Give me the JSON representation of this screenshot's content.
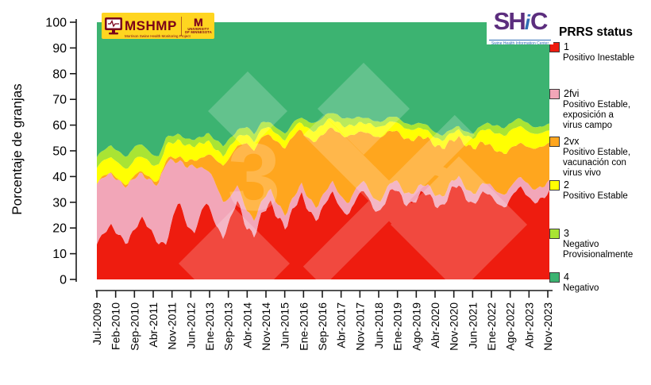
{
  "colors": {
    "umn_maroon": "#7A0019",
    "umn_gold": "#FFD520",
    "shic_purple": "#5C2E7E",
    "shic_blue": "#2F6DB5",
    "axis": "#1a1a1a"
  },
  "logos": {
    "mshmp": {
      "name": "MSHMP",
      "subtitle": "Morrison Swine Health Monitoring Project"
    },
    "umn": {
      "m": "M",
      "line1": "University",
      "line2": "of Minnesota"
    },
    "shic": {
      "sh": "SH",
      "i": "i",
      "c": "C",
      "subtitle": "Swine Health Information Center"
    }
  },
  "watermark": {
    "glyph": "3"
  },
  "legend": {
    "title": "PRRS status",
    "items": [
      {
        "code": "1",
        "color": "#EE1C0F",
        "desc": [
          "Positivo Inestable"
        ]
      },
      {
        "code": "2fvi",
        "color": "#F2A6B8",
        "desc": [
          "Positivo Estable,",
          "exposición a",
          "virus campo"
        ]
      },
      {
        "code": "2vx",
        "color": "#FFA61E",
        "desc": [
          "Positivo Estable,",
          "vacunación con",
          "virus vivo"
        ]
      },
      {
        "code": "2",
        "color": "#FFFF02",
        "desc": [
          "Positivo Estable"
        ]
      },
      {
        "code": "3",
        "color": "#A9E434",
        "desc": [
          "Negativo",
          "Provisionalmente"
        ]
      },
      {
        "code": "4",
        "color": "#3CB371",
        "desc": [
          "Negativo"
        ]
      }
    ]
  },
  "chart_data": {
    "type": "area",
    "stacked": true,
    "title": "",
    "xlabel": "",
    "ylabel": "Porcentaje de granjas",
    "ylim": [
      0,
      100
    ],
    "grid": false,
    "legend_position": "right",
    "yticks": [
      0,
      10,
      20,
      30,
      40,
      50,
      60,
      70,
      80,
      90,
      100
    ],
    "xtick_labels": [
      "Jul-2009",
      "Feb-2010",
      "Sep-2010",
      "Abr-2011",
      "Nov-2011",
      "Jun-2012",
      "Ene-2013",
      "Sep-2013",
      "Abr-2014",
      "Nov-2014",
      "Jun-2015",
      "Ene-2016",
      "Sep-2016",
      "Abr-2017",
      "Nov-2017",
      "Jun-2018",
      "Ene-2019",
      "Ago-2019",
      "Abr-2020",
      "Nov-2020",
      "Jun-2021",
      "Ene-2022",
      "Ago-2022",
      "Abr-2023",
      "Nov-2023"
    ],
    "x": [
      2009.54,
      2009.75,
      2010.0,
      2010.25,
      2010.5,
      2010.75,
      2011.0,
      2011.25,
      2011.5,
      2011.75,
      2012.0,
      2012.15,
      2012.4,
      2012.65,
      2012.9,
      2013.05,
      2013.3,
      2013.55,
      2013.8,
      2014.0,
      2014.3,
      2014.55,
      2014.8,
      2015.05,
      2015.3,
      2015.55,
      2015.8,
      2016.05,
      2016.3,
      2016.55,
      2016.8,
      2017.05,
      2017.3,
      2017.55,
      2017.8,
      2018.05,
      2018.3,
      2018.55,
      2018.8,
      2019.05,
      2019.3,
      2019.55,
      2019.8,
      2020.05,
      2020.3,
      2020.55,
      2020.8,
      2021.05,
      2021.3,
      2021.55,
      2021.8,
      2022.05,
      2022.3,
      2022.55,
      2022.8,
      2023.05,
      2023.3,
      2023.55,
      2023.93
    ],
    "series": [
      {
        "name": "1 Positivo Inestable",
        "color": "#EE1C0F",
        "values": [
          14,
          18,
          21,
          17,
          14,
          20,
          24,
          19,
          14,
          14,
          26,
          31,
          21,
          18,
          28,
          30,
          22,
          16,
          24,
          31,
          20,
          17,
          26,
          30,
          24,
          20,
          28,
          33,
          26,
          23,
          30,
          34,
          27,
          25,
          32,
          35,
          28,
          26,
          33,
          36,
          30,
          29,
          33,
          34,
          29,
          28,
          35,
          37,
          31,
          29,
          34,
          33,
          29,
          28,
          34,
          36,
          31,
          30,
          34
        ]
      },
      {
        "name": "2fvi Positivo Estable, exposición a virus campo",
        "color": "#F2A6B8",
        "values": [
          23,
          22,
          20,
          21,
          22,
          20,
          17,
          19,
          23,
          32,
          20,
          15,
          23,
          26,
          15,
          13,
          16,
          14,
          8,
          6,
          7,
          6,
          5,
          5,
          5,
          5,
          4.5,
          4,
          5,
          5,
          4.5,
          4,
          5,
          4.5,
          4,
          3.5,
          4,
          4,
          3.5,
          3,
          4,
          4,
          3.5,
          3,
          4,
          4,
          3,
          3,
          4,
          4,
          3.5,
          4,
          4.5,
          5,
          4,
          4,
          5,
          5,
          4
        ]
      },
      {
        "name": "2vx Positivo Estable, vacunación con virus vivo",
        "color": "#FFA61E",
        "values": [
          0.5,
          0.5,
          0.5,
          0.5,
          0.5,
          1,
          1,
          1,
          1,
          1,
          1.5,
          1.5,
          2,
          2.5,
          4,
          6,
          9,
          14,
          16,
          15,
          26,
          27,
          25,
          21,
          24,
          26,
          24,
          21,
          23,
          26,
          23,
          21,
          24,
          26,
          21,
          19,
          24,
          25,
          21,
          19,
          21,
          21,
          19,
          18,
          19,
          19,
          16,
          15,
          17,
          18,
          16,
          15,
          16,
          16,
          14,
          13,
          15,
          16,
          15
        ]
      },
      {
        "name": "2 Positivo Estable",
        "color": "#FFFF02",
        "values": [
          6,
          6,
          6,
          6.5,
          6,
          6,
          6,
          6,
          6,
          5.5,
          6,
          6.5,
          6,
          5.5,
          6,
          5,
          4,
          4,
          4,
          3.5,
          3.5,
          3.5,
          3,
          3,
          3,
          3,
          3,
          3,
          4,
          4,
          4,
          3.5,
          4,
          4,
          3.5,
          3.5,
          4,
          4,
          3.5,
          3.5,
          4,
          4,
          3.5,
          3,
          3,
          3,
          3,
          3,
          3.5,
          4,
          5,
          6,
          7,
          7,
          7,
          6.5,
          6,
          5.5,
          5
        ]
      },
      {
        "name": "3 Negativo Provisionalmente",
        "color": "#A9E434",
        "values": [
          4,
          4,
          4.5,
          4.5,
          5,
          5,
          4.5,
          4,
          3.5,
          3,
          2.5,
          2.5,
          2.5,
          2.5,
          2.5,
          3,
          3.5,
          4,
          3,
          2.5,
          3,
          3,
          2.5,
          2,
          2.5,
          2.5,
          2,
          2,
          3,
          3,
          2.5,
          2.5,
          3,
          3,
          2.5,
          2,
          2,
          2,
          2,
          2,
          2,
          2,
          2,
          2,
          2,
          2,
          1.5,
          1.5,
          1.5,
          2,
          2,
          2.5,
          3,
          3,
          3,
          3,
          3,
          2.5,
          2.5
        ]
      },
      {
        "name": "4 Negativo",
        "color": "#3CB371",
        "values": [
          52.5,
          49.5,
          48,
          50.5,
          52.5,
          48,
          47.5,
          51,
          52.5,
          44.5,
          44,
          43.5,
          45.5,
          45.5,
          44.5,
          43,
          45.5,
          48,
          45,
          42,
          40.5,
          43.5,
          38.5,
          39,
          41.5,
          43.5,
          38.5,
          37,
          39,
          39,
          36,
          35,
          37,
          37.5,
          37,
          37,
          38,
          39,
          37,
          36.5,
          39,
          40,
          39,
          40,
          43,
          44,
          41.5,
          40.5,
          43,
          43,
          39.5,
          39.5,
          40.5,
          41,
          38,
          37.5,
          40,
          41,
          39.5
        ]
      }
    ]
  }
}
